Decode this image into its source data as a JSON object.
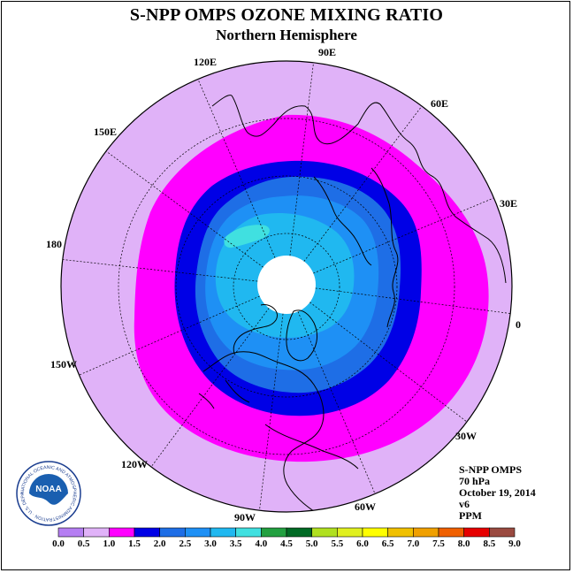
{
  "title": "S-NPP OMPS OZONE MIXING RATIO",
  "subtitle": "Northern Hemisphere",
  "longitude_labels": {
    "lon_90e": "90E",
    "lon_60e": "60E",
    "lon_30e": "30E",
    "lon_0": "0",
    "lon_30w": "30W",
    "lon_60w": "60W",
    "lon_90w": "90W",
    "lon_120w": "120W",
    "lon_150w": "150W",
    "lon_180": "180",
    "lon_150e": "150E",
    "lon_120e": "120E"
  },
  "info": {
    "instrument": "S-NPP OMPS",
    "level": "70 hPa",
    "date": "October 19, 2014",
    "version": "v6",
    "units": "PPM"
  },
  "colorbar": {
    "labels": [
      "0.0",
      "0.5",
      "1.0",
      "1.5",
      "2.0",
      "2.5",
      "3.0",
      "3.5",
      "4.0",
      "4.5",
      "5.0",
      "5.5",
      "6.0",
      "6.5",
      "7.0",
      "7.5",
      "8.0",
      "8.5",
      "9.0"
    ],
    "colors": [
      "#b57ef2",
      "#e0b2f8",
      "#ff00ff",
      "#0000e6",
      "#1e6ee6",
      "#1e90f5",
      "#20b8f0",
      "#40e0e0",
      "#22a040",
      "#006a24",
      "#b0e020",
      "#e0f020",
      "#ffff00",
      "#f0c000",
      "#f0a000",
      "#f06000",
      "#e60000",
      "#9a4a40"
    ]
  },
  "map_colors": {
    "outer": "#e0b2f8",
    "ring_magenta": "#ff00ff",
    "ring_darkblue": "#0000e6",
    "ring_blue": "#1e6ee6",
    "ring_mid": "#1e90f5",
    "ring_light": "#20b8f0",
    "ring_cyan": "#40e0e0",
    "no_data": "#ffffff"
  },
  "logo": {
    "text": "NOAA",
    "ring_text": "NATIONAL OCEANIC AND ATMOSPHERIC ADMINISTRATION · U.S. DEPARTMENT OF COMMERCE"
  }
}
